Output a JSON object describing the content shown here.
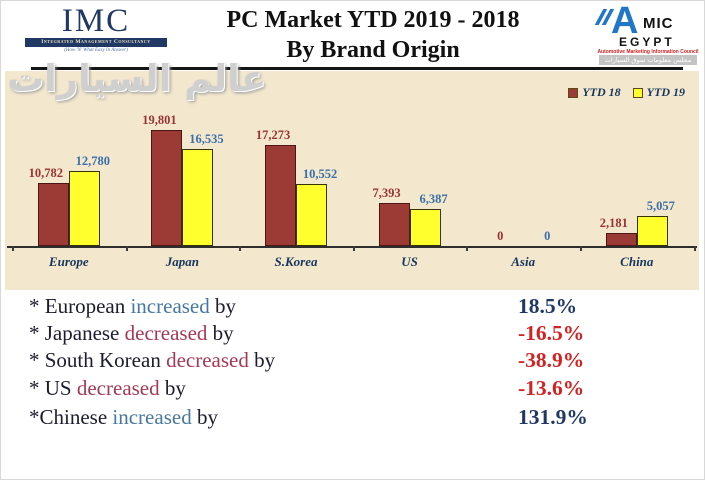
{
  "header": {
    "imc": {
      "acronym": "IMC",
      "bar_text": "Integrated Management Consultancy",
      "tagline": "(How 'N' What Easy In Answer)"
    },
    "title_line1": "PC Market YTD 2019 - 2018",
    "title_line2": "By Brand Origin",
    "amic": {
      "a": "A",
      "mic": "MIC",
      "egypt": "EGYPT",
      "line1": "Automotive Marketing Information Council",
      "line2": "مجلس معلومات سوق السيارات"
    }
  },
  "watermark": "عالم السيارات",
  "chart_data": {
    "type": "bar",
    "title": "PC Market YTD 2019 - 2018 By Brand Origin",
    "categories": [
      "Europe",
      "Japan",
      "S.Korea",
      "US",
      "Asia",
      "China"
    ],
    "series": [
      {
        "name": "YTD 18",
        "color": "#9C3A36",
        "border": "#4A1616",
        "label_color": "#993333",
        "values": [
          10782,
          19801,
          17273,
          7393,
          0,
          2181
        ]
      },
      {
        "name": "YTD 19",
        "color": "#FFFF2E",
        "border": "#33330A",
        "label_color": "#3A6FA8",
        "values": [
          12780,
          16535,
          10552,
          6387,
          0,
          5057
        ]
      }
    ],
    "value_labels": [
      [
        "10,782",
        "19,801",
        "17,273",
        "7,393",
        "0",
        "2,181"
      ],
      [
        "12,780",
        "16,535",
        "10,552",
        "6,387",
        "0",
        "5,057"
      ]
    ],
    "xlabel": "",
    "ylabel": "",
    "ylim": [
      0,
      30000
    ],
    "grid": false,
    "legend_position": "top-right"
  },
  "summary": {
    "rows": [
      {
        "pre": "* European ",
        "verb": "increased",
        "verb_color": "#46789E",
        "post": " by",
        "value": "18.5%",
        "value_color": "#203864"
      },
      {
        "pre": "* Japanese ",
        "verb": "decreased",
        "verb_color": "#A23A55",
        "post": " by",
        "value": "-16.5%",
        "value_color": "#D32222"
      },
      {
        "pre": "* South Korean ",
        "verb": "decreased",
        "verb_color": "#A23A55",
        "post": " by",
        "value": "-38.9%",
        "value_color": "#D32222"
      },
      {
        "pre": "* US ",
        "verb": "decreased",
        "verb_color": "#A23A55",
        "post": " by",
        "value": "-13.6%",
        "value_color": "#D32222"
      },
      {
        "pre": "*Chinese ",
        "verb": "increased",
        "verb_color": "#46789E",
        "post": " by",
        "value": "131.9%",
        "value_color": "#203864"
      }
    ]
  },
  "colors": {
    "panel_bg": "#F3E8CE",
    "bar_ytd18": "#9C3A36",
    "bar_ytd19": "#FFFF2E",
    "navy": "#17365D",
    "increase_blue": "#46789E",
    "decrease_red": "#A23A55",
    "pct_navy": "#203864",
    "pct_red": "#D32222"
  }
}
